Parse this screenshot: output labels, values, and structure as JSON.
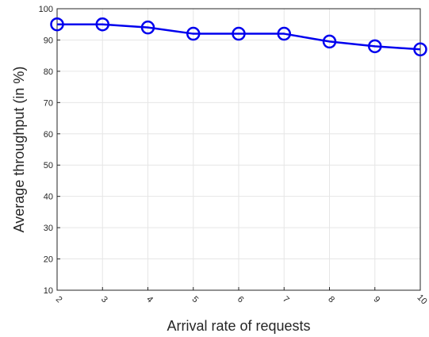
{
  "chart_data": {
    "type": "line",
    "title": "",
    "xlabel": "Arrival rate of requests",
    "ylabel": "Average throughput (in %)",
    "x": [
      2,
      3,
      4,
      5,
      6,
      7,
      8,
      9,
      10
    ],
    "xticks": [
      "2",
      "3",
      "4",
      "5",
      "6",
      "7",
      "8",
      "9",
      "10"
    ],
    "yticks": [
      "10",
      "20",
      "30",
      "40",
      "50",
      "60",
      "70",
      "80",
      "90",
      "100"
    ],
    "xlim": [
      2,
      10
    ],
    "ylim": [
      10,
      100
    ],
    "grid": true,
    "series": [
      {
        "values": [
          95,
          95,
          94,
          92,
          92,
          92,
          89.5,
          88,
          87
        ],
        "color": "#0000ee",
        "marker": "circle"
      }
    ]
  }
}
